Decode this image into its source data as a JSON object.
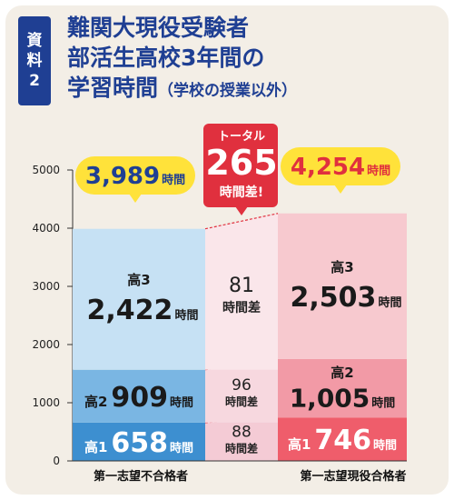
{
  "header": {
    "tag": [
      "資",
      "料",
      "2"
    ],
    "title_lines": [
      "難関大現役受験者",
      "部活生高校3年間の",
      "学習時間"
    ],
    "title_sub": "（学校の授業以外）"
  },
  "colors": {
    "title": "#1f3f93",
    "left": [
      "#3d8fd0",
      "#7ab6e3",
      "#c6e1f4"
    ],
    "left_text": [
      "#ffffff",
      "#1a1a1a",
      "#1a1a1a"
    ],
    "mid": [
      "#f4cbd5",
      "#f7d8df",
      "#fae6ea"
    ],
    "right": [
      "#ef5d6b",
      "#f29aa6",
      "#f7c9cf"
    ],
    "right_text": [
      "#ffffff",
      "#1a1a1a",
      "#1a1a1a"
    ],
    "callout_yellow": "#ffe23a",
    "callout_red": "#e0303e"
  },
  "chart_data": {
    "type": "bar",
    "stacked": true,
    "ylim": [
      0,
      5000
    ],
    "yticks": [
      "0",
      "1000",
      "2000",
      "3000",
      "4000",
      "5000"
    ],
    "categories": [
      "第一志望不合格者",
      "第一志望現役合格者"
    ],
    "series": [
      {
        "name": "高1",
        "values": [
          658,
          746
        ],
        "labels": [
          "658",
          "746"
        ]
      },
      {
        "name": "高2",
        "values": [
          909,
          1005
        ],
        "labels": [
          "909",
          "1,005"
        ]
      },
      {
        "name": "高3",
        "values": [
          2422,
          2503
        ],
        "labels": [
          "2,422",
          "2,503"
        ]
      }
    ],
    "totals": [
      "3,989",
      "4,254"
    ],
    "total_unit": "時間",
    "unit": "時間",
    "differences": [
      {
        "value": "88",
        "unit": "時間差"
      },
      {
        "value": "96",
        "unit": "時間差"
      },
      {
        "value": "81",
        "unit": "時間差"
      }
    ],
    "total_difference": {
      "top": "トータル",
      "value": "265",
      "bottom": "時間差!"
    }
  }
}
